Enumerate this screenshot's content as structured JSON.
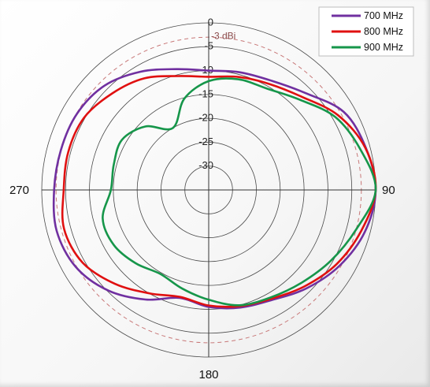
{
  "chart_data": {
    "type": "line",
    "subtype": "polar",
    "title": "",
    "radial_ticks": [
      "0",
      "-5",
      "-10",
      "-15",
      "-20",
      "-25",
      "-30"
    ],
    "radial_range": [
      -35,
      0
    ],
    "angle_labels": [
      "90",
      "180",
      "270"
    ],
    "reference_line": {
      "value": -3,
      "label": "-3 dBi",
      "style": "dashed",
      "color": "#c87878"
    },
    "grid": true,
    "legend_position": "top-right",
    "angles_deg": [
      0,
      15,
      30,
      45,
      60,
      75,
      90,
      105,
      120,
      135,
      150,
      165,
      180,
      195,
      210,
      225,
      240,
      255,
      270,
      285,
      300,
      315,
      330,
      345,
      360
    ],
    "series": [
      {
        "name": "700 MHz",
        "color": "#7030a0",
        "values": [
          -10,
          -9.5,
          -8.6,
          -6.3,
          -2.3,
          -0.9,
          0,
          -1.1,
          -3.3,
          -5.9,
          -8.4,
          -9.5,
          -10.5,
          -11.6,
          -8.5,
          -5.2,
          -2.8,
          -2.0,
          -2.6,
          -2.9,
          -3.1,
          -4.1,
          -6.4,
          -8.8,
          -10
        ]
      },
      {
        "name": "800 MHz",
        "color": "#e01010",
        "values": [
          -11.3,
          -10.5,
          -9.4,
          -7.4,
          -3.7,
          -1.0,
          0,
          -1.9,
          -4.0,
          -6.5,
          -8.7,
          -9.8,
          -10.8,
          -11.8,
          -10.0,
          -7.2,
          -4.5,
          -3.6,
          -4.6,
          -4.5,
          -4.8,
          -6.4,
          -8.0,
          -10.3,
          -11.3
        ]
      },
      {
        "name": "900 MHz",
        "color": "#16964a",
        "values": [
          -12.2,
          -11.0,
          -10.5,
          -8.2,
          -4.4,
          -2.1,
          0,
          -3.0,
          -5.4,
          -7.5,
          -9.0,
          -10.0,
          -12.0,
          -13.6,
          -14.7,
          -13.3,
          -12.0,
          -12.0,
          -14.5,
          -14.4,
          -14.0,
          -16.2,
          -20.0,
          -15.2,
          -12.2
        ]
      }
    ]
  }
}
